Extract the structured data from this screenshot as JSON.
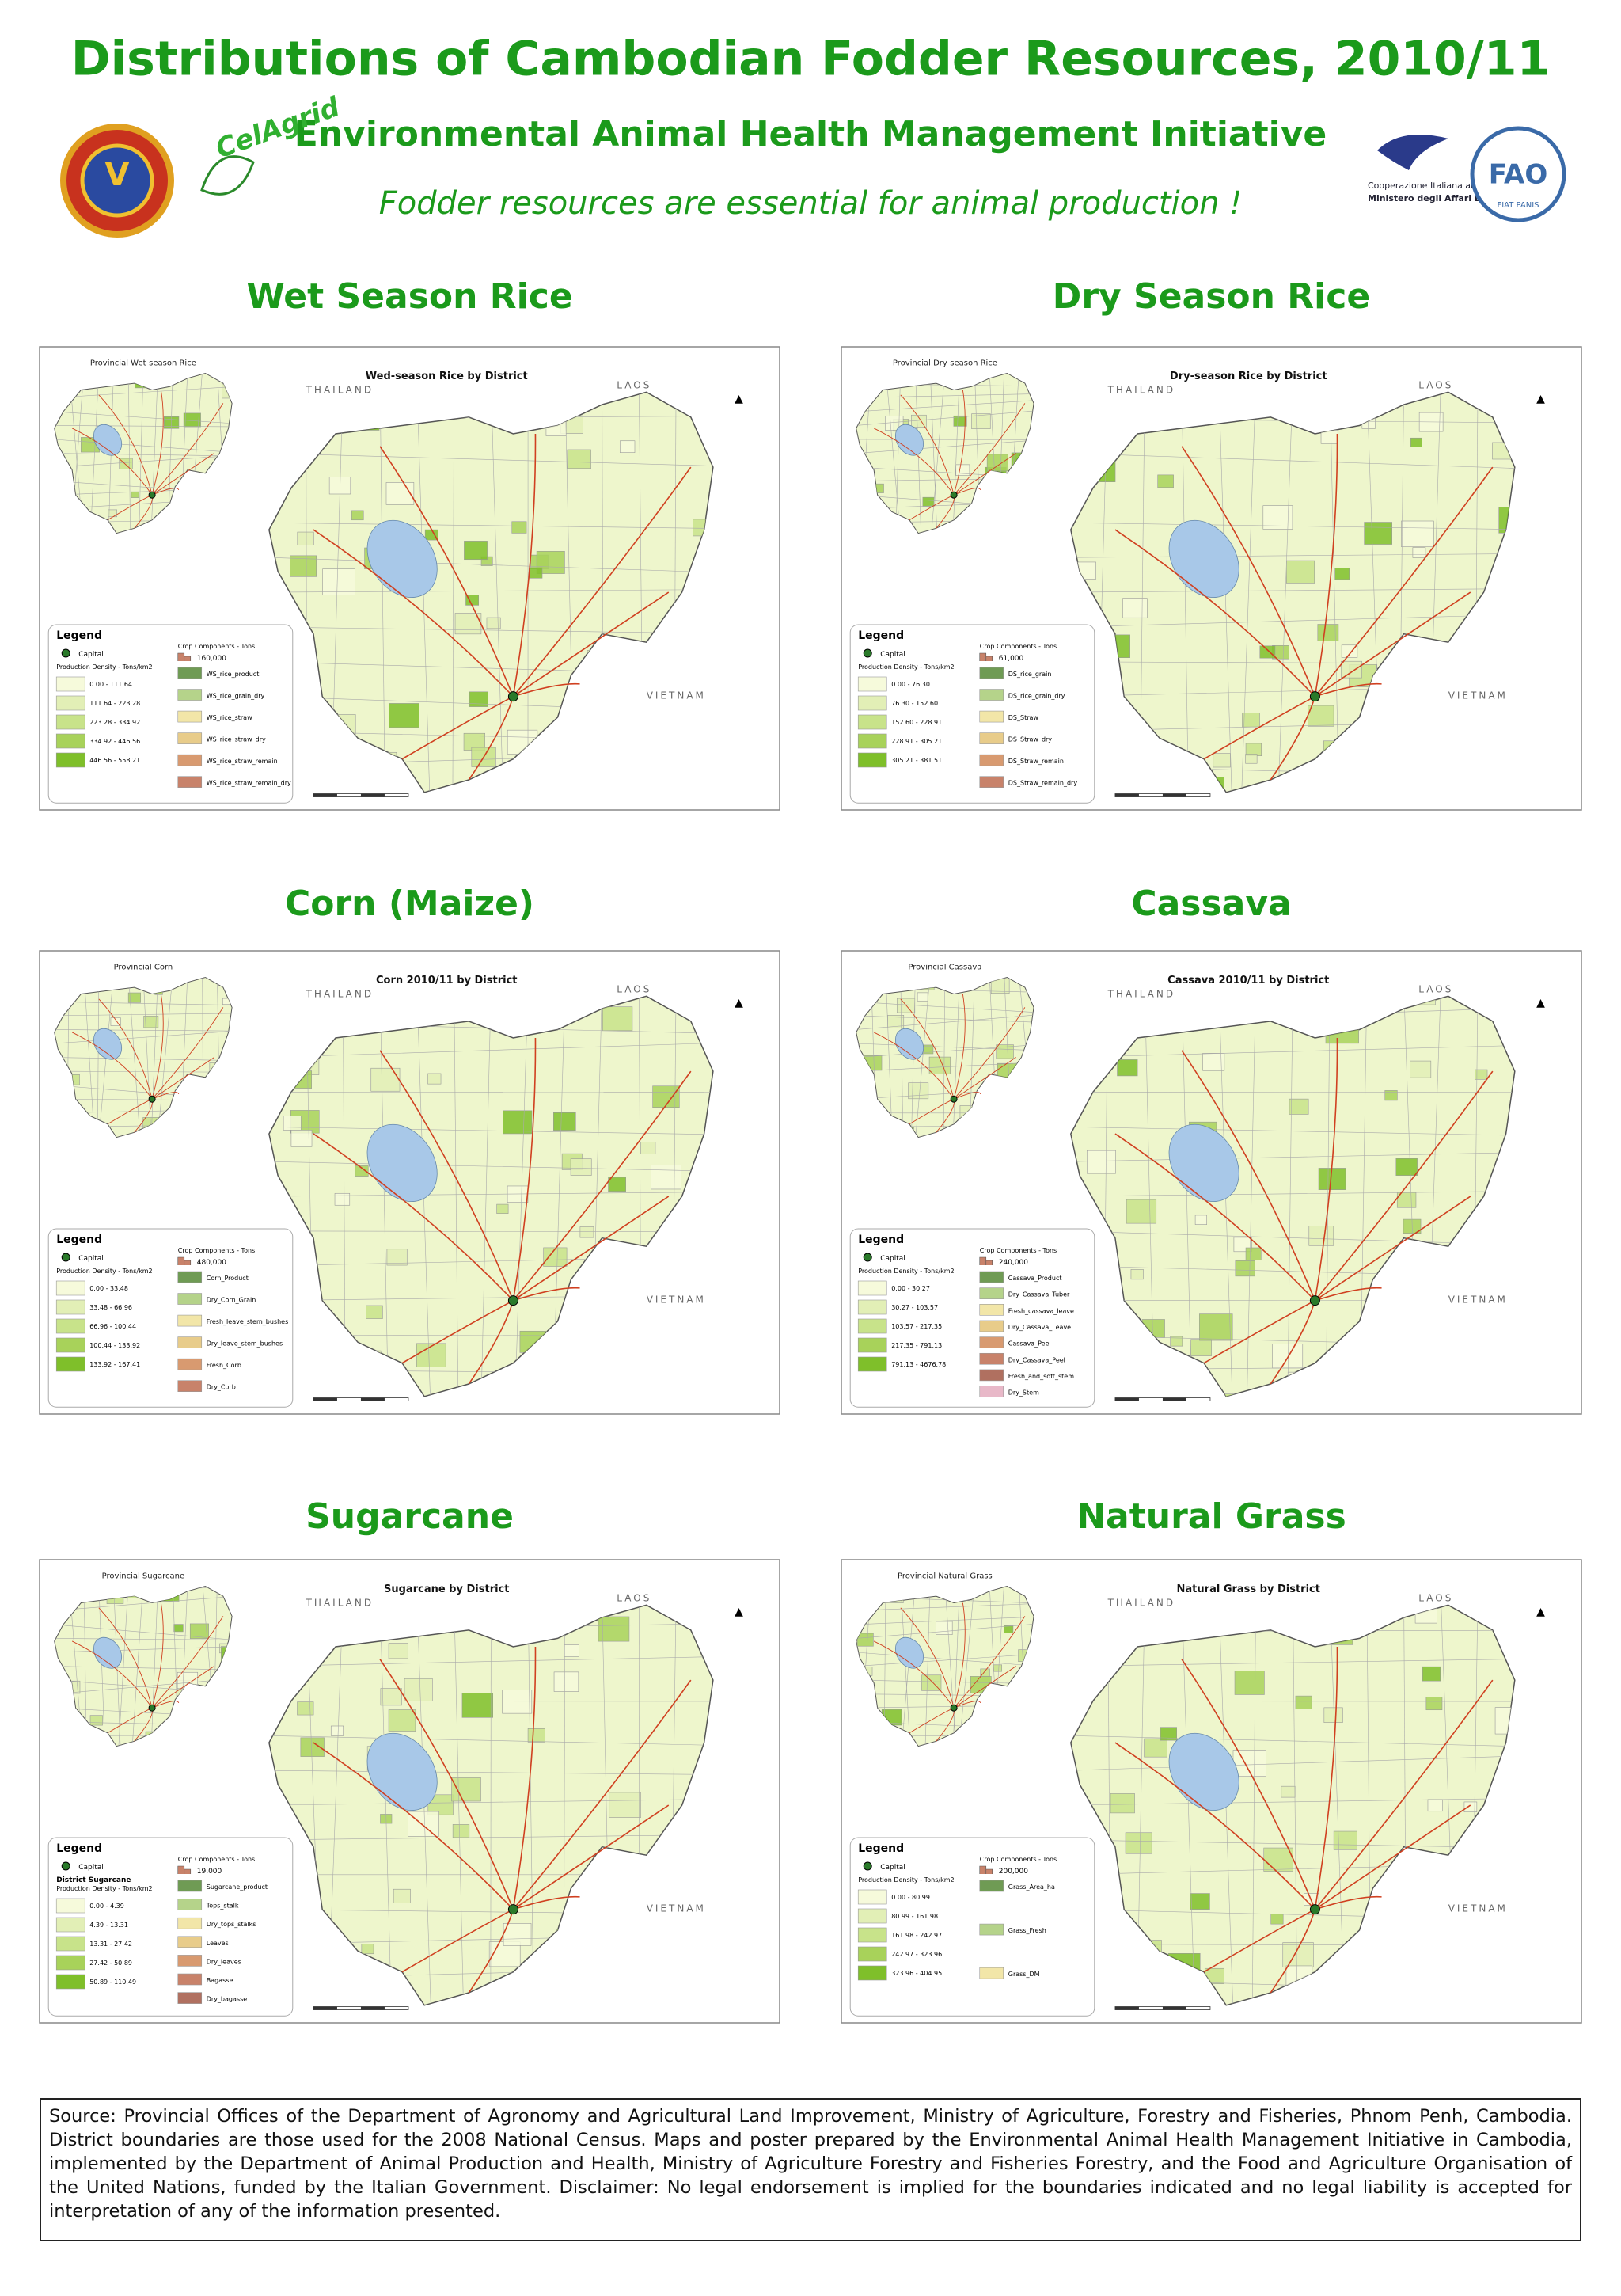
{
  "header": {
    "title": "Distributions of Cambodian Fodder Resources, 2010/11",
    "subtitle": "Environmental Animal Health Management Initiative",
    "tagline": "Fodder resources are essential for animal production !"
  },
  "logos": {
    "celagrid": "CelAgrid",
    "cooperazione": "Cooperazione Italiana allo Sviluppo",
    "ministero": "Ministero degli Affari Esteri",
    "fao": "FAO",
    "fiat_panis": "FIAT PANIS"
  },
  "countries": {
    "thailand": "THAILAND",
    "laos": "LAOS",
    "vietnam": "VIETNAM"
  },
  "panels": [
    {
      "title": "Wet Season Rice",
      "map_title": "Wed-season Rice by District",
      "inset_title": "Provincial Wet-season Rice",
      "legend": {
        "heading": "Legend",
        "capital": "Capital",
        "density_heading": "Production Density - Tons/km2",
        "components_heading": "Crop Components - Tons",
        "component_scale": "160,000",
        "density_classes": [
          "0.00 - 111.64",
          "111.64 - 223.28",
          "223.28 - 334.92",
          "334.92 - 446.56",
          "446.56 - 558.21"
        ],
        "components": [
          "WS_rice_product",
          "WS_rice_grain_dry",
          "WS_rice_straw",
          "WS_rice_straw_dry",
          "WS_rice_straw_remain",
          "WS_rice_straw_remain_dry"
        ]
      }
    },
    {
      "title": "Dry Season Rice",
      "map_title": "Dry-season Rice by District",
      "inset_title": "Provincial Dry-season Rice",
      "legend": {
        "heading": "Legend",
        "capital": "Capital",
        "density_heading": "Production Density - Tons/km2",
        "components_heading": "Crop Components - Tons",
        "component_scale": "61,000",
        "density_classes": [
          "0.00 - 76.30",
          "76.30 - 152.60",
          "152.60 - 228.91",
          "228.91 - 305.21",
          "305.21 - 381.51"
        ],
        "components": [
          "DS_rice_grain",
          "DS_rice_grain_dry",
          "DS_Straw",
          "DS_Straw_dry",
          "DS_Straw_remain",
          "DS_Straw_remain_dry"
        ]
      }
    },
    {
      "title": "Corn (Maize)",
      "map_title": "Corn 2010/11 by District",
      "inset_title": "Provincial Corn",
      "legend": {
        "heading": "Legend",
        "capital": "Capital",
        "density_heading": "Production Density - Tons/km2",
        "components_heading": "Crop Components - Tons",
        "component_scale": "480,000",
        "density_classes": [
          "0.00 - 33.48",
          "33.48 - 66.96",
          "66.96 - 100.44",
          "100.44 - 133.92",
          "133.92 - 167.41"
        ],
        "components": [
          "Corn_Product",
          "Dry_Corn_Grain",
          "Fresh_leave_stem_bushes",
          "Dry_leave_stem_bushes",
          "Fresh_Corb",
          "Dry_Corb"
        ]
      }
    },
    {
      "title": "Cassava",
      "map_title": "Cassava 2010/11 by District",
      "inset_title": "Provincial Cassava",
      "legend": {
        "heading": "Legend",
        "capital": "Capital",
        "density_heading": "Production Density - Tons/km2",
        "components_heading": "Crop Components - Tons",
        "component_scale": "240,000",
        "density_classes": [
          "0.00 - 30.27",
          "30.27 - 103.57",
          "103.57 - 217.35",
          "217.35 - 791.13",
          "791.13 - 4676.78"
        ],
        "components": [
          "Cassava_Product",
          "Dry_Cassava_Tuber",
          "Fresh_cassava_leave",
          "Dry_Cassava_Leave",
          "Cassava_Peel",
          "Dry_Cassava_Peel",
          "Fresh_and_soft_stem",
          "Dry_Stem"
        ]
      }
    },
    {
      "title": "Sugarcane",
      "map_title": "Sugarcane by District",
      "inset_title": "Provincial Sugarcane",
      "legend": {
        "heading": "Legend",
        "capital": "Capital",
        "density_subheading": "District Sugarcane",
        "density_heading": "Production Density - Tons/km2",
        "components_heading": "Crop Components - Tons",
        "component_scale": "19,000",
        "density_classes": [
          "0.00 - 4.39",
          "4.39 - 13.31",
          "13.31 - 27.42",
          "27.42 - 50.89",
          "50.89 - 110.49"
        ],
        "components": [
          "Sugarcane_product",
          "Tops_stalk",
          "Dry_tops_stalks",
          "Leaves",
          "Dry_leaves",
          "Bagasse",
          "Dry_bagasse"
        ]
      }
    },
    {
      "title": "Natural Grass",
      "map_title": "Natural Grass by District",
      "inset_title": "Provincial Natural Grass",
      "legend": {
        "heading": "Legend",
        "capital": "Capital",
        "density_heading": "Production Density - Tons/km2",
        "components_heading": "Crop Components - Tons",
        "component_scale": "200,000",
        "density_classes": [
          "0.00 - 80.99",
          "80.99 - 161.98",
          "161.98 - 242.97",
          "242.97 - 323.96",
          "323.96 - 404.95"
        ],
        "components": [
          "Grass_Area_ha",
          "Grass_Fresh",
          "Grass_DM"
        ]
      }
    }
  ],
  "source": "Source: Provincial Offices of the Department of Agronomy and Agricultural Land Improvement, Ministry of Agriculture, Forestry and Fisheries, Phnom Penh, Cambodia. District boundaries are those used for the 2008 National Census. Maps and poster prepared by the Environmental Animal Health Management Initiative in Cambodia, implemented by the Department of Animal Production and Health, Ministry of Agriculture Forestry and Fisheries Forestry, and the Food and Agriculture Organisation of the United Nations, funded by the Italian Government. Disclaimer: No legal endorsement is implied for the boundaries indicated and no legal liability is accepted for interpretation of any of the information presented."
}
